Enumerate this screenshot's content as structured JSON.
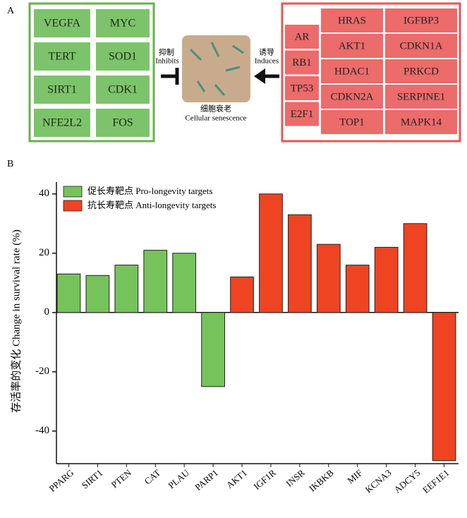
{
  "panel_a": {
    "label": "A",
    "pro_genes": [
      "VEGFA",
      "MYC",
      "TERT",
      "SOD1",
      "SIRT1",
      "CDK1",
      "NFE2L2",
      "FOS"
    ],
    "inhibits_cn": "抑制",
    "inhibits_en": "Inhibits",
    "senescence_cn": "细胞衰老",
    "senescence_en": "Cellular senescence",
    "induces_cn": "诱导",
    "induces_en": "Induces",
    "anti_genes_column": [
      "AR",
      "RB1",
      "TP53",
      "E2F1"
    ],
    "anti_genes_grid": [
      "HRAS",
      "IGFBP3",
      "AKT1",
      "CDKN1A",
      "HDAC1",
      "PRKCD",
      "CDKN2A",
      "SERPINE1",
      "TOP1",
      "MAPK14"
    ]
  },
  "chart_data": {
    "type": "bar",
    "panel_label": "B",
    "y_label": "存活率的变化 Change in survival rate (%)",
    "categories": [
      "PPARG",
      "SIRT1",
      "PTEN",
      "CAT",
      "PLAU",
      "PARP1",
      "AKT1",
      "IGF1R",
      "INSR",
      "IKBKB",
      "MIF",
      "KCNA3",
      "ADCY5",
      "EEF1E1"
    ],
    "series": [
      {
        "name": "促长寿靶点 Pro-longevity targets",
        "color": "#77c35b",
        "values": [
          13,
          12.5,
          16,
          21,
          20,
          -25,
          null,
          null,
          null,
          null,
          null,
          null,
          null,
          null
        ]
      },
      {
        "name": "抗长寿靶点 Anti-longevity targets",
        "color": "#ee4422",
        "values": [
          null,
          null,
          null,
          null,
          null,
          null,
          12,
          40,
          33,
          23,
          16,
          22,
          30,
          -50
        ]
      }
    ],
    "ylim": [
      -51,
      44
    ],
    "yticks": [
      40,
      20,
      0,
      -20,
      -40
    ],
    "legend": "upper-left"
  }
}
